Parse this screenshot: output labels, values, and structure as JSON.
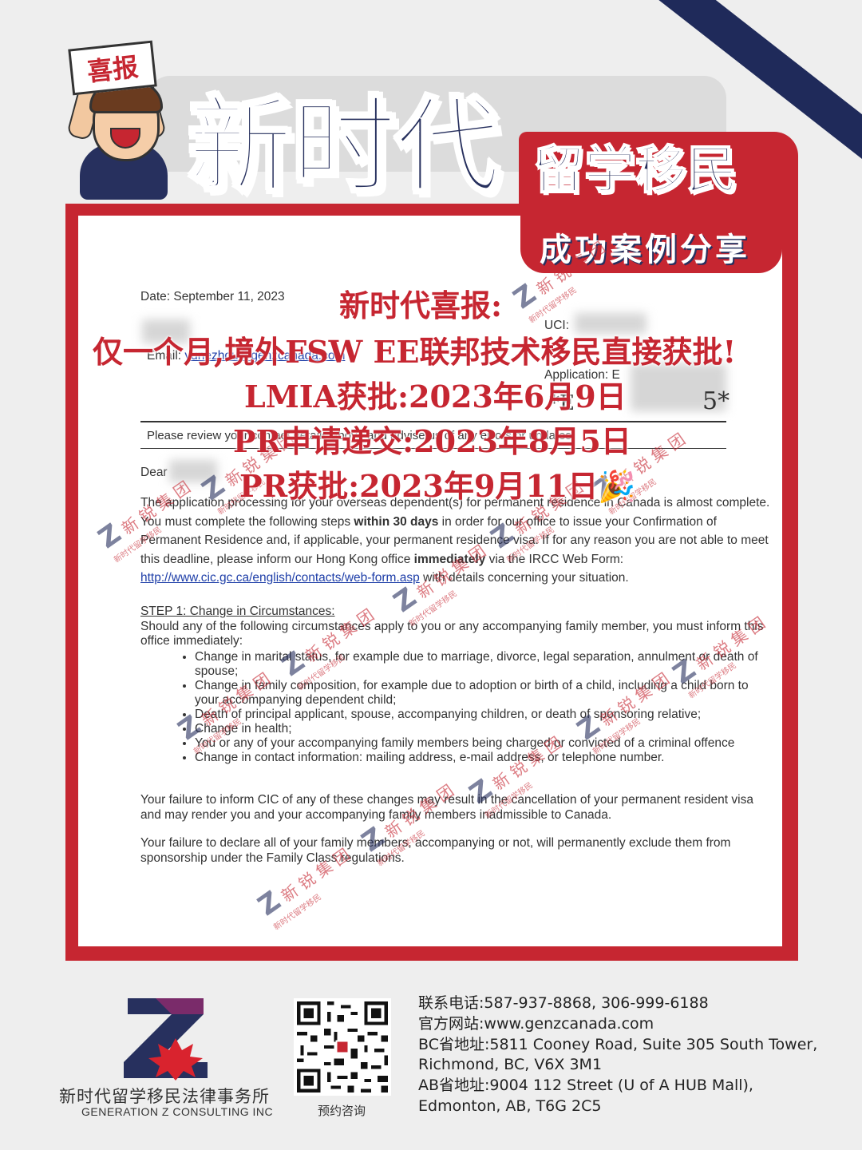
{
  "header": {
    "brand_main": "新时代",
    "brand_sub": "留学移民",
    "case_label": "成功案例分享",
    "sign_label": "喜报"
  },
  "headline": {
    "line1": "新时代喜报:",
    "line2": "仅一个月,境外FSW EE联邦技术移民直接获批!",
    "line3": "LMIA获批:2023年6月9日",
    "line4": "PR申请递交:2023年8月5日",
    "line5": "PR获批:2023年9月11日🎉"
  },
  "letter": {
    "date": "Date: September 11, 2023",
    "uci_label": "UCI:",
    "application_label": "Application: E",
    "app_fragment_1": "*E",
    "app_fragment_2": "5*",
    "email_label": "Email:",
    "email_value": "yunezhou@genzcanada.com",
    "review_notice": "Please review your contact details above and advise us of any errors or updates",
    "dear": "Dear",
    "para1_a": "The application processing for your overseas dependent(s) for permanent residence in Canada is almost complete. You must complete the following steps ",
    "para1_bold1": "within 30 days",
    "para1_b": " in order for our office to issue your Confirmation of Permanent Residence and, if applicable, your permanent residence visa. If for any reason you are not able to meet this deadline, please inform our Hong Kong office ",
    "para1_bold2": "immediately",
    "para1_c": " via the IRCC Web Form:",
    "link": "http://www.cic.gc.ca/english/contacts/web-form.asp",
    "link_after": " with details concerning your situation.",
    "step1_title": "STEP 1: Change in Circumstances:",
    "step1_intro": "Should any of the following circumstances apply to you or any accompanying family member, you must inform this office immediately:",
    "bullets": [
      "Change in marital status, for example due to marriage, divorce, legal separation, annulment or death of spouse;",
      "Change in family composition, for example due to adoption or birth of a child, including a child born to your accompanying dependent child;",
      "Death of principal applicant, spouse, accompanying children, or death of sponsoring relative;",
      "Change in health;",
      "You or any of your accompanying family members being charged or convicted of a criminal offence",
      "Change in contact information:  mailing address, e-mail address, or telephone number."
    ],
    "para2": "Your failure to inform CIC of any of these changes may result in the cancellation of your permanent resident visa and may render you and your accompanying family members inadmissible to Canada.",
    "para3": "Your failure to declare all of your family members, accompanying or not, will permanently exclude them from sponsorship under the Family Class regulations."
  },
  "watermark": {
    "main": "新 锐 集 团",
    "sub": "新时代留学移民"
  },
  "footer": {
    "company_cn": "新时代留学移民法律事务所",
    "company_en": "GENERATION Z CONSULTING INC",
    "qr_caption": "预约咨询",
    "phone": "联系电话:587-937-8868, 306-999-6188",
    "website": "官方网站:www.genzcanada.com",
    "bc_address_1": "BC省地址:5811 Cooney Road, Suite 305 South Tower,",
    "bc_address_2": "Richmond, BC, V6X 3M1",
    "ab_address_1": "AB省地址:9004 112 Street (U of A HUB Mall),",
    "ab_address_2": "Edmonton, AB, T6G 2C5"
  },
  "colors": {
    "brand_navy": "#27305e",
    "brand_red": "#c62631",
    "link_blue": "#1e3ea8"
  }
}
